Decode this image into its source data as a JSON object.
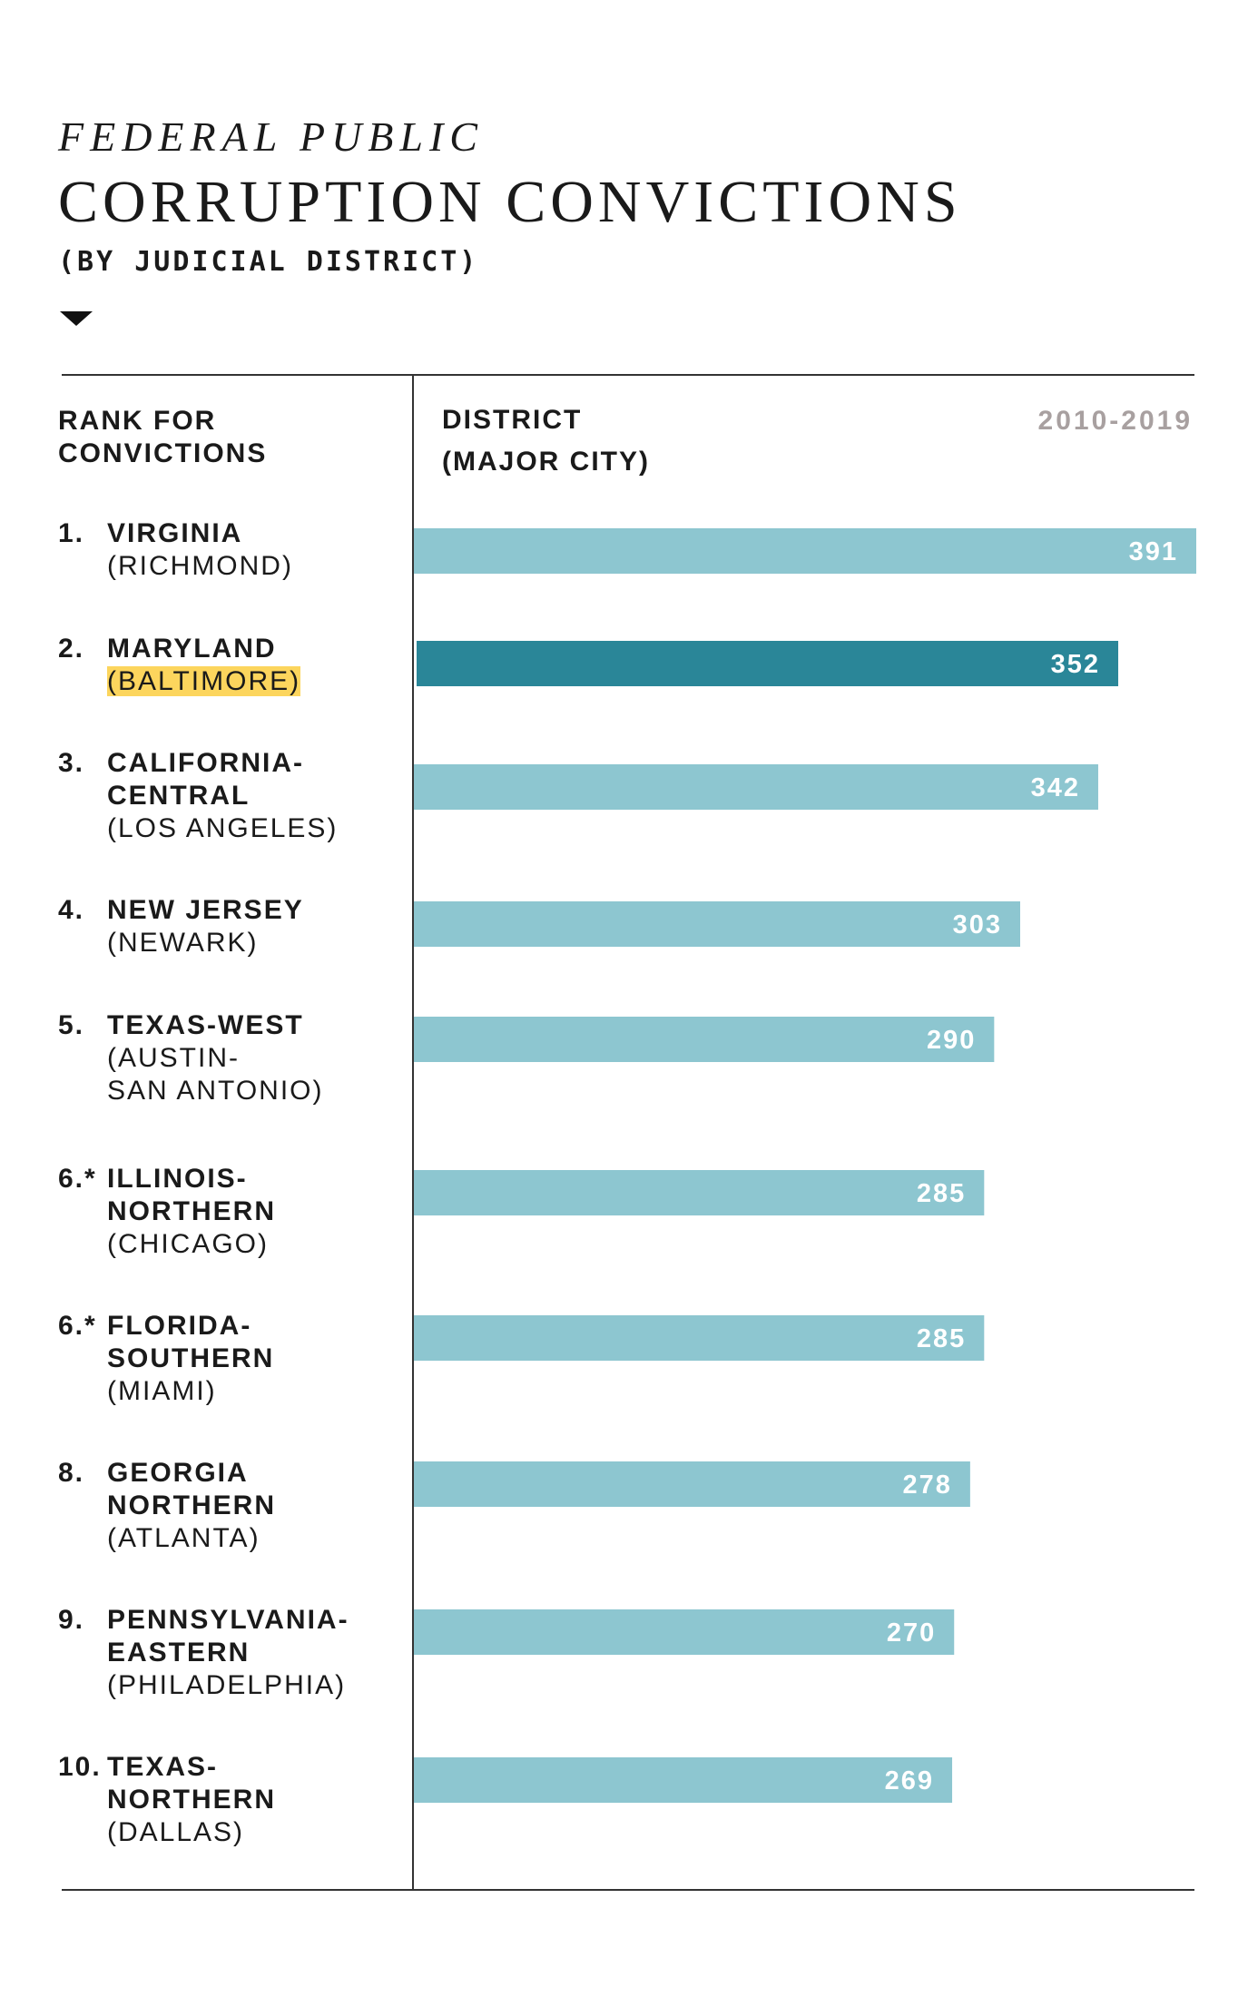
{
  "title": {
    "line1": "FEDERAL PUBLIC",
    "line2": "CORRUPTION CONVICTIONS"
  },
  "subtitle": "(BY JUDICIAL DISTRICT)",
  "headers": {
    "rank": [
      "RANK FOR",
      "CONVICTIONS"
    ],
    "district": [
      "DISTRICT",
      "(MAJOR CITY)"
    ],
    "period": "2010-2019"
  },
  "colors": {
    "bar": "#8dc6d0",
    "bar_highlight": "#2a8698",
    "city_highlight": "#fcd55d",
    "label": "#ffffff"
  },
  "chart_data": {
    "type": "bar",
    "orientation": "horizontal",
    "categories": [
      "VIRGINIA (RICHMOND)",
      "MARYLAND (BALTIMORE)",
      "CALIFORNIA-CENTRAL (LOS ANGELES)",
      "NEW JERSEY (NEWARK)",
      "TEXAS-WEST (AUSTIN-SAN ANTONIO)",
      "ILLINOIS-NORTHERN (CHICAGO)",
      "FLORIDA-SOUTHERN (MIAMI)",
      "GEORGIA NORTHERN (ATLANTA)",
      "PENNSYLVANIA-EASTERN (PHILADELPHIA)",
      "TEXAS-NORTHERN (DALLAS)"
    ],
    "values": [
      391,
      352,
      342,
      303,
      290,
      285,
      285,
      278,
      270,
      269
    ],
    "highlight_index": 1,
    "xlim": [
      0,
      391
    ],
    "grid": false,
    "legend": "none"
  },
  "rows": [
    {
      "rank": "1.",
      "name": [
        "VIRGINIA"
      ],
      "city": [
        "(RICHMOND)"
      ],
      "value": "391",
      "highlight": false
    },
    {
      "rank": "2.",
      "name": [
        "MARYLAND"
      ],
      "city": [
        "(BALTIMORE)"
      ],
      "value": "352",
      "highlight": true
    },
    {
      "rank": "3.",
      "name": [
        "CALIFORNIA-",
        "CENTRAL"
      ],
      "city": [
        "(LOS ANGELES)"
      ],
      "value": "342",
      "highlight": false
    },
    {
      "rank": "4.",
      "name": [
        "NEW JERSEY"
      ],
      "city": [
        "(NEWARK)"
      ],
      "value": "303",
      "highlight": false
    },
    {
      "rank": "5.",
      "name": [
        "TEXAS-WEST"
      ],
      "city": [
        "(AUSTIN-",
        "SAN ANTONIO)"
      ],
      "value": "290",
      "highlight": false
    },
    {
      "rank": "6.*",
      "name": [
        "ILLINOIS-",
        "NORTHERN"
      ],
      "city": [
        "(CHICAGO)"
      ],
      "value": "285",
      "highlight": false
    },
    {
      "rank": "6.*",
      "name": [
        "FLORIDA-",
        "SOUTHERN"
      ],
      "city": [
        "(MIAMI)"
      ],
      "value": "285",
      "highlight": false
    },
    {
      "rank": "8.",
      "name": [
        "GEORGIA",
        "NORTHERN"
      ],
      "city": [
        "(ATLANTA)"
      ],
      "value": "278",
      "highlight": false
    },
    {
      "rank": "9.",
      "name": [
        "PENNSYLVANIA-",
        "EASTERN"
      ],
      "city": [
        "(PHILADELPHIA)"
      ],
      "value": "270",
      "highlight": false
    },
    {
      "rank": "10.",
      "name": [
        "TEXAS-",
        "NORTHERN"
      ],
      "city": [
        "(DALLAS)"
      ],
      "value": "269",
      "highlight": false
    }
  ]
}
